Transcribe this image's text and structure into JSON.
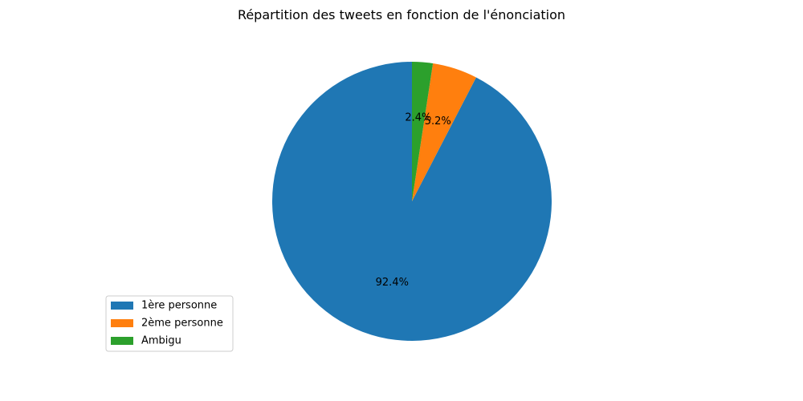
{
  "chart_data": {
    "type": "pie",
    "title": "Répartition des tweets en fonction de l'énonciation",
    "labels": [
      "1ère personne",
      "2ème personne",
      "Ambigu"
    ],
    "values": [
      92.4,
      5.2,
      2.4
    ],
    "percent_labels": [
      "92.4%",
      "5.2%",
      "2.4%"
    ],
    "colors": [
      "#1f77b4",
      "#ff7f0e",
      "#2ca02c"
    ],
    "start_angle_deg": 90,
    "direction": "counterclockwise",
    "legend_position": "lower-left"
  }
}
